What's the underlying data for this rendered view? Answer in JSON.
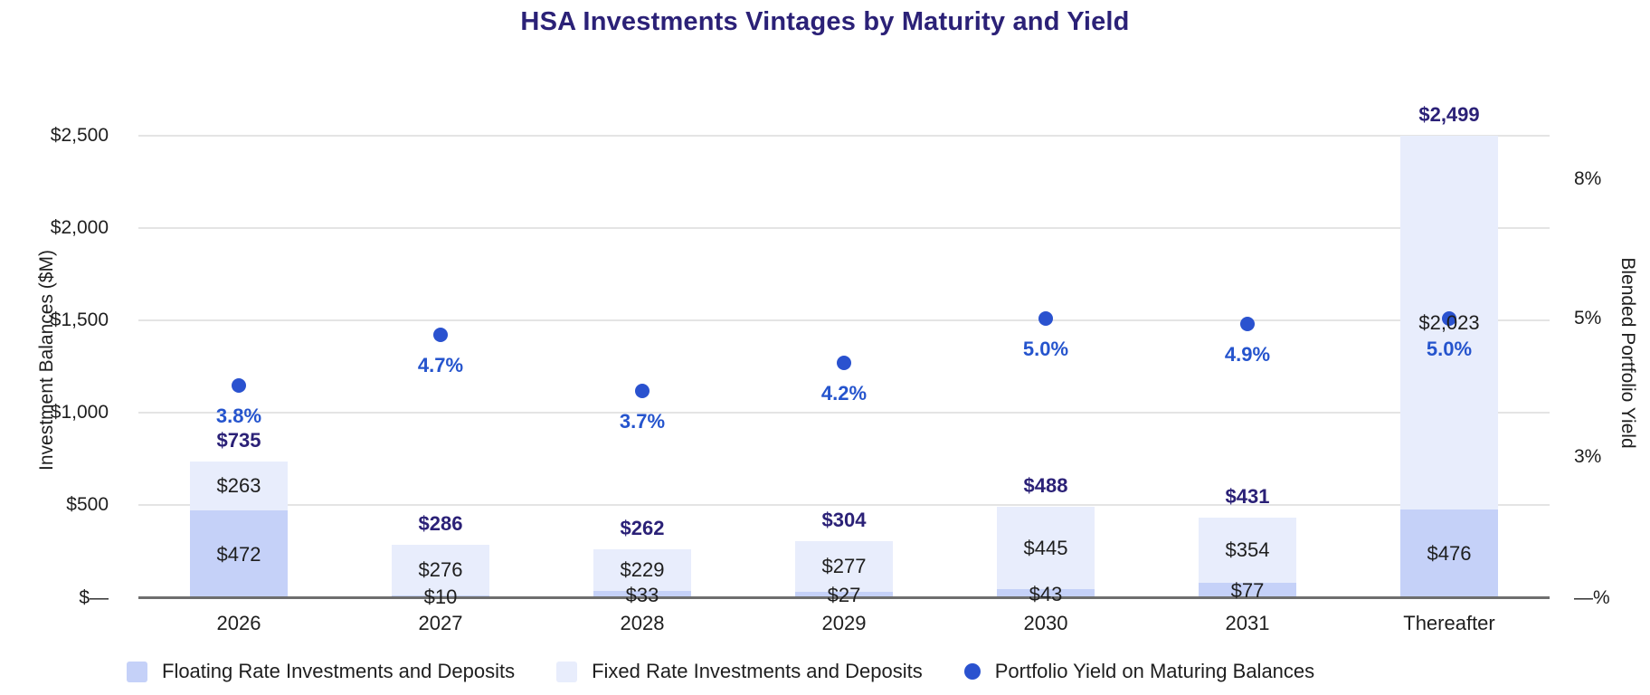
{
  "title": "HSA Investments Vintages by Maturity and Yield",
  "left_axis": {
    "title": "Investment Balances ($M)",
    "ticks": [
      "$2,500",
      "$2,000",
      "$1,500",
      "$1,000",
      "$500",
      "$—"
    ]
  },
  "right_axis": {
    "title": "Blended Portfolio Yield",
    "ticks": [
      "8%",
      "5%",
      "3%",
      "—%"
    ]
  },
  "legend": [
    {
      "label": "Floating Rate Investments and Deposits",
      "marker": "square"
    },
    {
      "label": "Fixed Rate Investments and Deposits",
      "marker": "square"
    },
    {
      "label": "Portfolio Yield on Maturing Balances",
      "marker": "dot"
    }
  ],
  "colors": {
    "title_navy": "#2b2177",
    "total_label_navy": "#2b2177",
    "yield_blue": "#2554cd",
    "dot_blue": "#2a52cf",
    "floating_bar": "#c5d1f8",
    "fixed_bar": "#e8edfc",
    "gridline": "#e4e4e4",
    "baseline": "#6e6e6e",
    "text_dark": "#1e1e1e"
  },
  "chart_data": {
    "type": "combo: stacked-bar + scatter (dual axis)",
    "categories": [
      "2026",
      "2027",
      "2028",
      "2029",
      "2030",
      "2031",
      "Thereafter"
    ],
    "series": [
      {
        "name": "Floating Rate Investments and Deposits",
        "type": "bar",
        "axis": "left",
        "values": [
          472,
          10,
          33,
          27,
          43,
          77,
          476
        ],
        "labels": [
          "$472",
          "$10",
          "$33",
          "$27",
          "$43",
          "$77",
          "$476"
        ]
      },
      {
        "name": "Fixed Rate Investments and Deposits",
        "type": "bar",
        "axis": "left",
        "values": [
          263,
          276,
          229,
          277,
          445,
          354,
          2023
        ],
        "labels": [
          "$263",
          "$276",
          "$229",
          "$277",
          "$445",
          "$354",
          "$2,023"
        ]
      },
      {
        "name": "Portfolio Yield on Maturing Balances",
        "type": "scatter",
        "axis": "right",
        "values": [
          3.8,
          4.7,
          3.7,
          4.2,
          5.0,
          4.9,
          5.0
        ],
        "labels": [
          "3.8%",
          "4.7%",
          "3.7%",
          "4.2%",
          "5.0%",
          "4.9%",
          "5.0%"
        ]
      }
    ],
    "totals": [
      735,
      286,
      262,
      304,
      488,
      431,
      2499
    ],
    "total_labels": [
      "$735",
      "$286",
      "$262",
      "$304",
      "$488",
      "$431",
      "$2,499"
    ],
    "left_axis_tick_values": [
      2500,
      2000,
      1500,
      1000,
      500,
      0
    ],
    "right_axis_tick_values": [
      8,
      5,
      3,
      0
    ],
    "left_ylim": [
      0,
      2500
    ],
    "grid": "horizontal",
    "legend_position": "bottom"
  }
}
